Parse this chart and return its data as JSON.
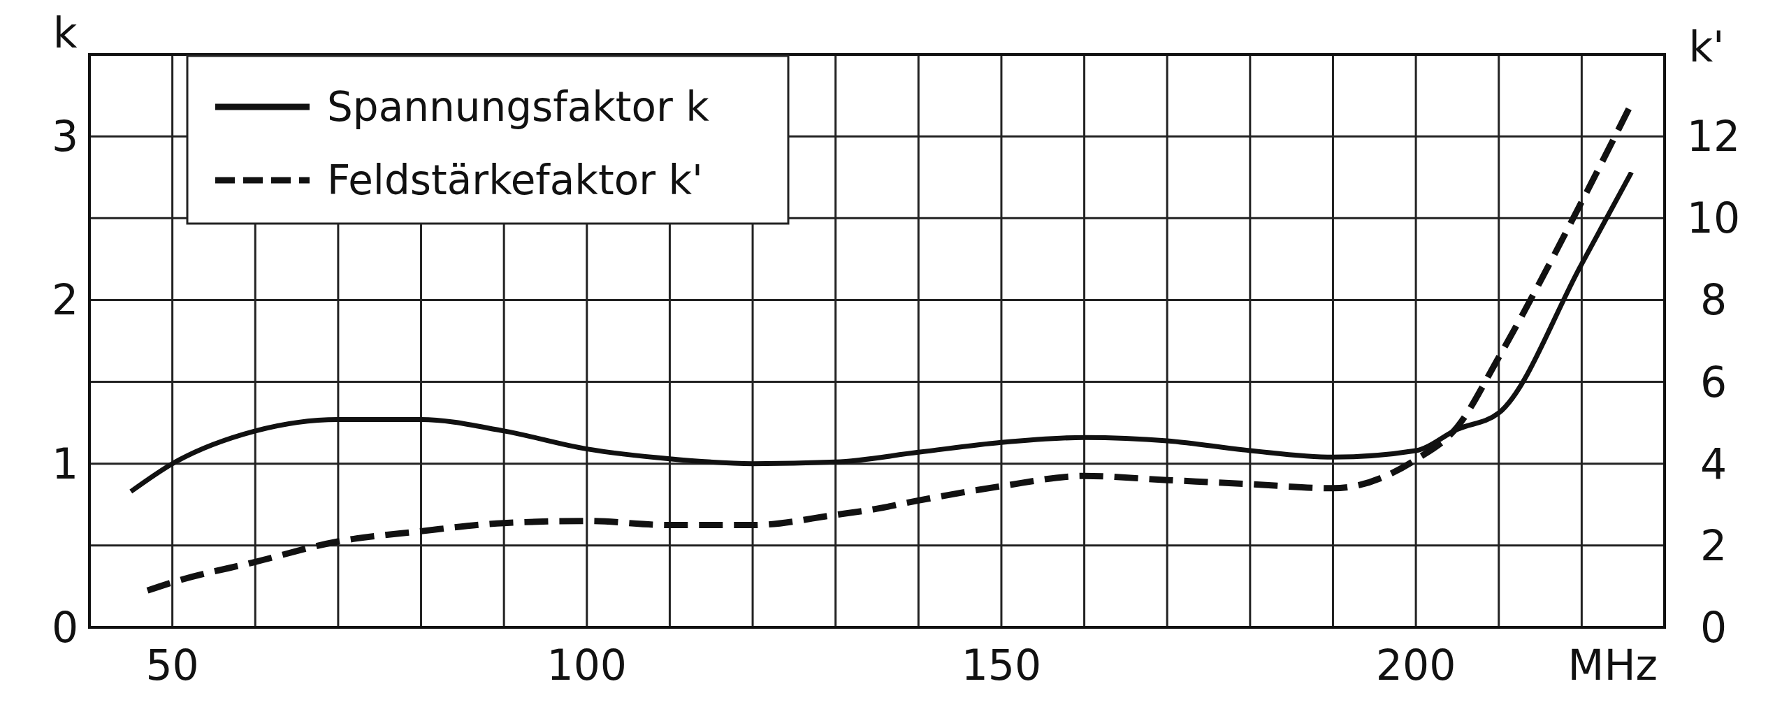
{
  "chart_data": {
    "type": "line",
    "ylabel": "k",
    "y2label": "k'",
    "xlabel": "MHz",
    "xlim": [
      40,
      230
    ],
    "xticks": [
      50,
      {
        "value": 60,
        "label": null
      },
      {
        "value": 70,
        "label": null
      },
      {
        "value": 80,
        "label": null
      },
      {
        "value": 90,
        "label": null
      },
      100,
      {
        "value": 110,
        "label": null
      },
      {
        "value": 120,
        "label": null
      },
      {
        "value": 130,
        "label": null
      },
      {
        "value": 140,
        "label": null
      },
      150,
      {
        "value": 160,
        "label": null
      },
      {
        "value": 170,
        "label": null
      },
      {
        "value": 180,
        "label": null
      },
      {
        "value": 190,
        "label": null
      },
      200,
      {
        "value": 210,
        "label": null
      },
      {
        "value": 220,
        "label": null
      }
    ],
    "ylim": [
      0,
      3.5
    ],
    "yticks": [
      0,
      {
        "value": 0.5,
        "label": null
      },
      1,
      {
        "value": 1.5,
        "label": null
      },
      2,
      {
        "value": 2.5,
        "label": null
      },
      3
    ],
    "y2lim": [
      0,
      14
    ],
    "y2ticks": [
      0,
      2,
      4,
      6,
      8,
      10,
      12
    ],
    "grid": true,
    "legend": "top left",
    "marker": "none",
    "series": [
      {
        "name": "Spannungsfaktor k",
        "color": "#111111",
        "line_style": "solid",
        "x": [
          45,
          50,
          60,
          70,
          80,
          90,
          100,
          110,
          120,
          130,
          140,
          150,
          160,
          170,
          180,
          190,
          200,
          205,
          210,
          220,
          226
        ],
        "values": [
          0.83,
          1.0,
          1.2,
          1.27,
          1.27,
          1.2,
          1.09,
          1.03,
          1.0,
          1.01,
          1.07,
          1.13,
          1.16,
          1.14,
          1.08,
          1.04,
          1.08,
          1.21,
          1.31,
          2.22,
          2.78
        ]
      },
      {
        "name": "Feldstärkefaktor k'",
        "color": "#111111",
        "line_style": "dashed",
        "axis": "y2",
        "x": [
          47,
          50,
          60,
          70,
          80,
          90,
          100,
          110,
          120,
          130,
          135,
          140,
          150,
          160,
          170,
          180,
          190,
          200,
          205,
          210,
          220,
          226
        ],
        "values": [
          0.9,
          1.1,
          1.6,
          2.1,
          2.35,
          2.55,
          2.6,
          2.5,
          2.5,
          2.75,
          2.9,
          3.1,
          3.45,
          3.7,
          3.6,
          3.5,
          3.4,
          4.1,
          4.9,
          6.6,
          10.4,
          12.8
        ]
      }
    ]
  }
}
